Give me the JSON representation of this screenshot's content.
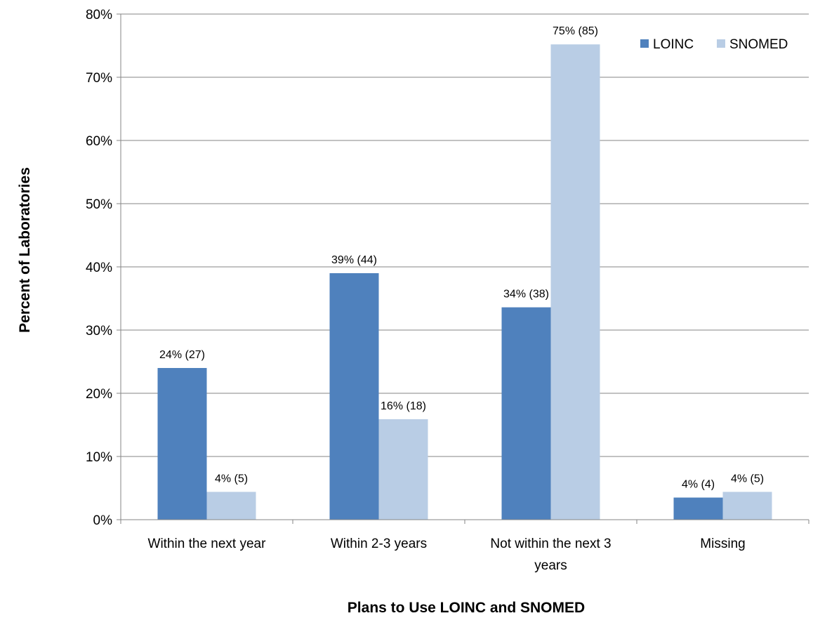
{
  "chart_data": {
    "type": "bar",
    "categories": [
      [
        "Within the next year"
      ],
      [
        "Within 2-3 years"
      ],
      [
        "Not within the next 3",
        "years"
      ],
      [
        "Missing"
      ]
    ],
    "series": [
      {
        "name": "LOINC",
        "color": "#4F81BD",
        "values": [
          24,
          39,
          33.6,
          3.5
        ],
        "labels": [
          "24% (27)",
          "39% (44)",
          "34% (38)",
          "4% (4)"
        ]
      },
      {
        "name": "SNOMED",
        "color": "#B9CDE5",
        "values": [
          4.4,
          15.9,
          75.2,
          4.4
        ],
        "labels": [
          "4% (5)",
          "16% (18)",
          "75% (85)",
          "4% (5)"
        ]
      }
    ],
    "xlabel": "Plans to Use LOINC and SNOMED",
    "ylabel": "Percent of Laboratories",
    "ylim": [
      0,
      80
    ],
    "yticks": [
      "0%",
      "10%",
      "20%",
      "30%",
      "40%",
      "50%",
      "60%",
      "70%",
      "80%"
    ],
    "grid": true,
    "legend_position": "top-right"
  }
}
